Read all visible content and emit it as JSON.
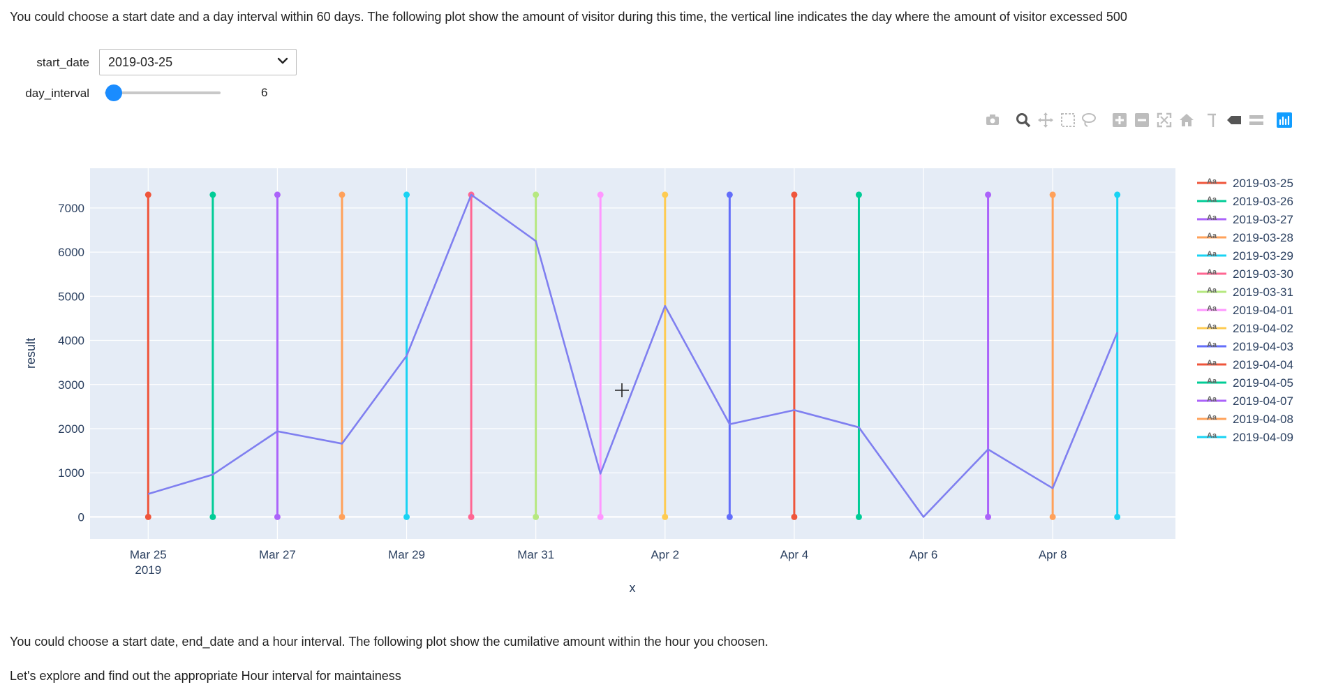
{
  "intro_text": "You could choose a start date and a day interval within 60 days. The following plot show the amount of visitor during this time, the vertical line indicates the day where the amount of visitor excessed 500",
  "controls": {
    "start_date_label": "start_date",
    "start_date_value": "2019-03-25",
    "day_interval_label": "day_interval",
    "day_interval_value": 6
  },
  "modebar_icons": [
    "camera-icon",
    "zoom-icon",
    "pan-icon",
    "box-select-icon",
    "lasso-icon",
    "zoom-in-icon",
    "zoom-out-icon",
    "autoscale-icon",
    "home-icon",
    "spike-icon",
    "hover-closest-icon",
    "hover-compare-icon",
    "plotly-logo-icon"
  ],
  "chart_data": {
    "type": "line",
    "xlabel": "x",
    "ylabel": "result",
    "x_tick_labels": [
      "Mar 25",
      "Mar 27",
      "Mar 29",
      "Mar 31",
      "Apr 2",
      "Apr 4",
      "Apr 6",
      "Apr 8"
    ],
    "x_tick_sub": "2019",
    "x_tick_days": [
      0,
      2,
      4,
      6,
      8,
      10,
      12,
      14
    ],
    "y_ticks": [
      0,
      1000,
      2000,
      3000,
      4000,
      5000,
      6000,
      7000
    ],
    "ylim": [
      -500,
      7900
    ],
    "xlim_days": [
      -0.9,
      15.9
    ],
    "line_color": "#7f7ff0",
    "main_series": {
      "x_days": [
        0,
        1,
        2,
        3,
        4,
        5,
        6,
        7,
        8,
        9,
        10,
        11,
        12,
        13,
        14,
        15
      ],
      "y": [
        520,
        960,
        1940,
        1660,
        3650,
        7300,
        6250,
        980,
        4780,
        2100,
        2420,
        2030,
        0,
        1530,
        650,
        4180
      ]
    },
    "vlines": [
      {
        "name": "2019-03-25",
        "day": 0,
        "color": "#ef553b"
      },
      {
        "name": "2019-03-26",
        "day": 1,
        "color": "#00cc96"
      },
      {
        "name": "2019-03-27",
        "day": 2,
        "color": "#ab63fa"
      },
      {
        "name": "2019-03-28",
        "day": 3,
        "color": "#ffa15a"
      },
      {
        "name": "2019-03-29",
        "day": 4,
        "color": "#19d3f3"
      },
      {
        "name": "2019-03-30",
        "day": 5,
        "color": "#ff6692"
      },
      {
        "name": "2019-03-31",
        "day": 6,
        "color": "#b6e880"
      },
      {
        "name": "2019-04-01",
        "day": 7,
        "color": "#ff97ff"
      },
      {
        "name": "2019-04-02",
        "day": 8,
        "color": "#fecb52"
      },
      {
        "name": "2019-04-03",
        "day": 9,
        "color": "#636efa"
      },
      {
        "name": "2019-04-04",
        "day": 10,
        "color": "#ef553b"
      },
      {
        "name": "2019-04-05",
        "day": 11,
        "color": "#00cc96"
      },
      {
        "name": "2019-04-07",
        "day": 13,
        "color": "#ab63fa"
      },
      {
        "name": "2019-04-08",
        "day": 14,
        "color": "#ffa15a"
      },
      {
        "name": "2019-04-09",
        "day": 15,
        "color": "#19d3f3"
      }
    ],
    "vline_range": [
      0,
      7300
    ],
    "legend_placement": "right",
    "grid": true
  },
  "bottom_text_1": "You could choose a start date, end_date and a hour interval. The following plot show the cumilative amount within the hour you choosen.",
  "bottom_text_2": "Let's explore and find out the appropriate Hour interval for maintainess"
}
